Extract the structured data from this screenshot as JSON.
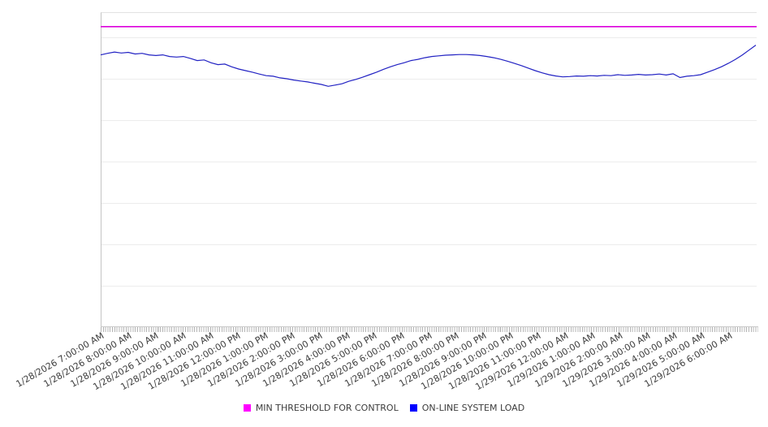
{
  "chart_data": {
    "type": "line",
    "title": "",
    "x_axis": {
      "start": "1/28/2026 7:00:00 AM",
      "end": "1/29/2026 6:45:00 AM",
      "interval_minutes": 15,
      "tick_labels": [
        "1/28/2026 7:00:00 AM",
        "1/28/2026 8:00:00 AM",
        "1/28/2026 9:00:00 AM",
        "1/28/2026 10:00:00 AM",
        "1/28/2026 11:00:00 AM",
        "1/28/2026 12:00:00 PM",
        "1/28/2026 1:00:00 PM",
        "1/28/2026 2:00:00 PM",
        "1/28/2026 3:00:00 PM",
        "1/28/2026 4:00:00 PM",
        "1/28/2026 5:00:00 PM",
        "1/28/2026 6:00:00 PM",
        "1/28/2026 7:00:00 PM",
        "1/28/2026 8:00:00 PM",
        "1/28/2026 9:00:00 PM",
        "1/28/2026 10:00:00 PM",
        "1/28/2026 11:00:00 PM",
        "1/29/2026 12:00:00 AM",
        "1/29/2026 1:00:00 AM",
        "1/29/2026 2:00:00 AM",
        "1/29/2026 3:00:00 AM",
        "1/29/2026 4:00:00 AM",
        "1/29/2026 5:00:00 AM",
        "1/29/2026 6:00:00 AM"
      ]
    },
    "y_axis": {
      "labels_visible": false,
      "units": "unlabeled axis - values estimated as % of plot height",
      "ylim": [
        0,
        100
      ],
      "grid": true
    },
    "legend_position": "bottom-center",
    "series": [
      {
        "name": "MIN THRESHOLD FOR CONTROL",
        "type": "constant-threshold",
        "color": "#dc00dc",
        "legend_color": "#ff00ff",
        "value": 95.4
      },
      {
        "name": "ON-LINE SYSTEM LOAD",
        "type": "line",
        "color": "#2222c3",
        "legend_color": "#0000ff",
        "values": [
          86.4,
          86.9,
          87.3,
          87.0,
          87.2,
          86.7,
          86.9,
          86.4,
          86.2,
          86.4,
          85.9,
          85.7,
          85.9,
          85.3,
          84.6,
          84.8,
          83.9,
          83.3,
          83.5,
          82.6,
          81.9,
          81.4,
          80.9,
          80.3,
          79.8,
          79.6,
          79.1,
          78.8,
          78.4,
          78.1,
          77.8,
          77.4,
          77.0,
          76.4,
          76.8,
          77.2,
          78.0,
          78.6,
          79.3,
          80.1,
          80.9,
          81.8,
          82.6,
          83.3,
          83.9,
          84.6,
          85.0,
          85.5,
          85.9,
          86.1,
          86.3,
          86.4,
          86.5,
          86.5,
          86.4,
          86.2,
          85.9,
          85.5,
          85.0,
          84.4,
          83.7,
          83.0,
          82.2,
          81.4,
          80.7,
          80.1,
          79.7,
          79.4,
          79.5,
          79.7,
          79.6,
          79.8,
          79.7,
          79.9,
          79.8,
          80.1,
          79.9,
          80.0,
          80.2,
          80.0,
          80.1,
          80.3,
          80.0,
          80.4,
          79.2,
          79.6,
          79.8,
          80.1,
          80.9,
          81.7,
          82.6,
          83.7,
          84.9,
          86.3,
          87.9,
          89.5
        ]
      }
    ]
  }
}
